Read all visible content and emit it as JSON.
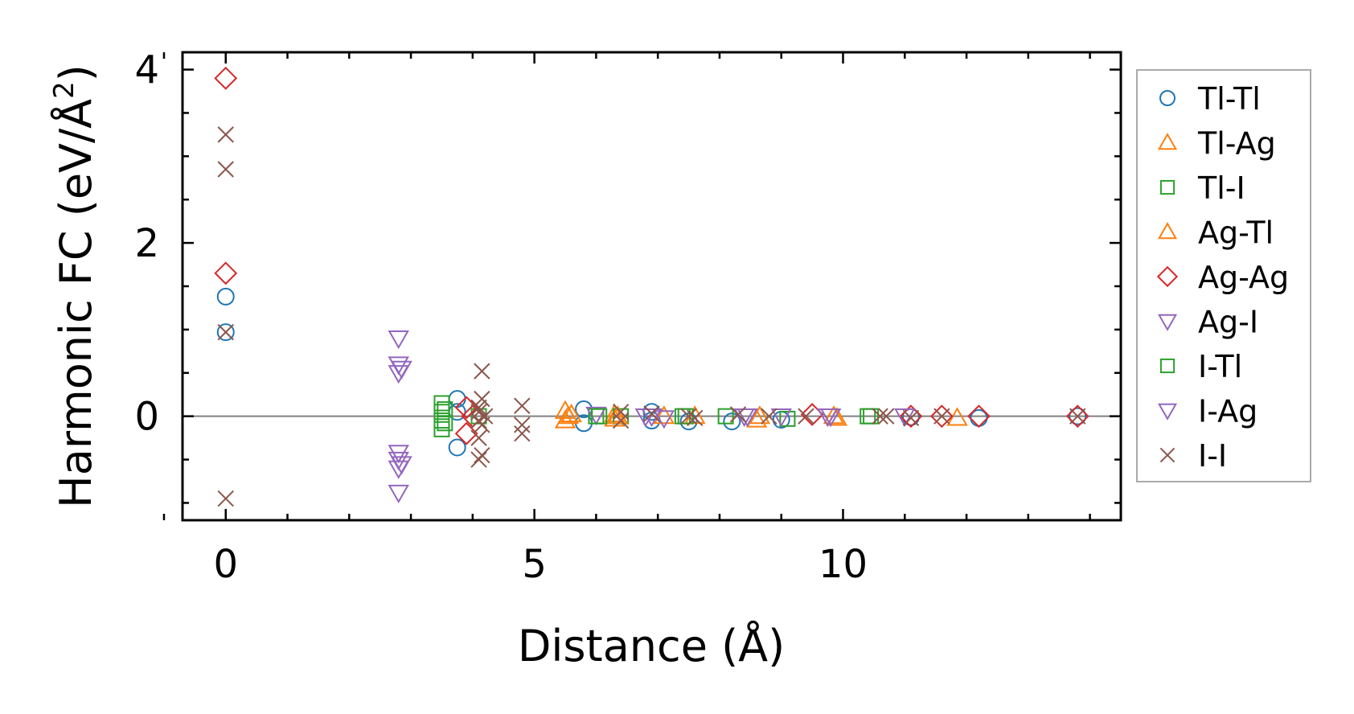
{
  "chart_data": {
    "type": "scatter",
    "xlabel": "Distance (Å)",
    "ylabel_main": "Harmonic FC (eV/Å",
    "ylabel_sup": "2",
    "ylabel_close": ")",
    "xlim": [
      -0.7,
      14.5
    ],
    "ylim": [
      -1.2,
      4.2
    ],
    "x_ticks": [
      0,
      5,
      10
    ],
    "x_tick_labels": [
      "0",
      "5",
      "10"
    ],
    "y_ticks": [
      0,
      2,
      4
    ],
    "y_tick_labels": [
      "0",
      "2",
      "4"
    ],
    "zero_line": true,
    "legend_position": "outside-right",
    "series": [
      {
        "name": "Tl-Tl",
        "marker": "circle",
        "color": "#1f77b4",
        "points": [
          [
            0,
            1.38
          ],
          [
            0,
            0.97
          ],
          [
            3.75,
            0.2
          ],
          [
            3.75,
            -0.36
          ],
          [
            3.75,
            0.05
          ],
          [
            5.8,
            0.08
          ],
          [
            5.8,
            -0.08
          ],
          [
            6.9,
            0.05
          ],
          [
            6.9,
            -0.05
          ],
          [
            7.5,
            -0.06
          ],
          [
            8.2,
            -0.06
          ],
          [
            9.0,
            -0.04
          ],
          [
            11.1,
            -0.01
          ],
          [
            12.2,
            -0.02
          ],
          [
            13.8,
            0
          ]
        ]
      },
      {
        "name": "Tl-Ag",
        "marker": "triangle-up",
        "color": "#ff7f0e",
        "points": [
          [
            5.5,
            0.06
          ],
          [
            5.5,
            -0.05
          ],
          [
            5.6,
            0.02
          ],
          [
            6.3,
            0.02
          ],
          [
            6.3,
            -0.03
          ],
          [
            7.1,
            0.0
          ],
          [
            8.6,
            -0.04
          ],
          [
            9.9,
            -0.02
          ],
          [
            11.85,
            -0.02
          ]
        ]
      },
      {
        "name": "Tl-I",
        "marker": "square",
        "color": "#2ca02c",
        "points": [
          [
            3.5,
            0.15
          ],
          [
            3.5,
            0.05
          ],
          [
            3.5,
            -0.05
          ],
          [
            3.5,
            -0.15
          ],
          [
            4.1,
            0.0
          ],
          [
            6.0,
            0.0
          ],
          [
            6.4,
            0.0
          ],
          [
            7.4,
            0.0
          ],
          [
            8.1,
            0.0
          ],
          [
            9.1,
            -0.03
          ],
          [
            10.4,
            0.0
          ]
        ]
      },
      {
        "name": "Ag-Tl",
        "marker": "triangle-up",
        "color": "#ff7f0e",
        "points": [
          [
            5.55,
            0.0
          ],
          [
            6.35,
            0.0
          ],
          [
            7.6,
            0.0
          ],
          [
            8.65,
            0.0
          ],
          [
            9.85,
            0.0
          ]
        ]
      },
      {
        "name": "Ag-Ag",
        "marker": "diamond",
        "color": "#d62728",
        "points": [
          [
            0,
            3.9
          ],
          [
            0,
            1.65
          ],
          [
            3.9,
            0.1
          ],
          [
            3.9,
            -0.2
          ],
          [
            4.0,
            0.0
          ],
          [
            9.5,
            0.02
          ],
          [
            11.1,
            0.0
          ],
          [
            11.6,
            0.0
          ],
          [
            12.2,
            0.0
          ],
          [
            13.8,
            0.0
          ]
        ]
      },
      {
        "name": "Ag-I",
        "marker": "triangle-down",
        "color": "#9467bd",
        "points": [
          [
            2.8,
            0.9
          ],
          [
            2.8,
            0.6
          ],
          [
            2.8,
            0.5
          ],
          [
            2.8,
            -0.42
          ],
          [
            2.8,
            -0.5
          ],
          [
            2.8,
            -0.6
          ],
          [
            2.8,
            -0.88
          ],
          [
            6.0,
            0.02
          ],
          [
            6.8,
            0.0
          ],
          [
            7.1,
            -0.02
          ],
          [
            8.4,
            0.0
          ],
          [
            9.0,
            0.0
          ],
          [
            9.8,
            0.0
          ],
          [
            11.0,
            0.0
          ]
        ]
      },
      {
        "name": "I-Tl",
        "marker": "square",
        "color": "#2ca02c",
        "points": [
          [
            3.55,
            0.08
          ],
          [
            3.55,
            -0.08
          ],
          [
            6.05,
            0.0
          ],
          [
            7.45,
            0.0
          ],
          [
            10.45,
            0.0
          ]
        ]
      },
      {
        "name": "I-Ag",
        "marker": "triangle-down",
        "color": "#9467bd",
        "points": [
          [
            2.85,
            0.55
          ],
          [
            2.85,
            -0.55
          ],
          [
            6.9,
            0.0
          ],
          [
            8.45,
            0.0
          ],
          [
            9.75,
            0.0
          ]
        ]
      },
      {
        "name": "I-I",
        "marker": "x",
        "color": "#8c564b",
        "points": [
          [
            0,
            3.25
          ],
          [
            0,
            2.85
          ],
          [
            0,
            0.97
          ],
          [
            0,
            -0.95
          ],
          [
            4.15,
            0.52
          ],
          [
            4.15,
            0.2
          ],
          [
            4.1,
            0.1
          ],
          [
            4.1,
            0.05
          ],
          [
            4.2,
            0.0
          ],
          [
            4.1,
            -0.05
          ],
          [
            4.15,
            -0.1
          ],
          [
            4.1,
            -0.25
          ],
          [
            4.15,
            -0.45
          ],
          [
            4.1,
            -0.5
          ],
          [
            4.8,
            0.12
          ],
          [
            4.8,
            -0.1
          ],
          [
            4.8,
            -0.2
          ],
          [
            6.4,
            0.05
          ],
          [
            6.4,
            -0.05
          ],
          [
            6.9,
            0.03
          ],
          [
            7.5,
            0.0
          ],
          [
            7.6,
            -0.02
          ],
          [
            8.3,
            0.02
          ],
          [
            8.8,
            0.0
          ],
          [
            9.4,
            0.0
          ],
          [
            10.6,
            0.0
          ],
          [
            10.7,
            0.0
          ],
          [
            11.1,
            -0.02
          ],
          [
            11.6,
            0.0
          ],
          [
            13.8,
            0.0
          ]
        ]
      }
    ]
  }
}
